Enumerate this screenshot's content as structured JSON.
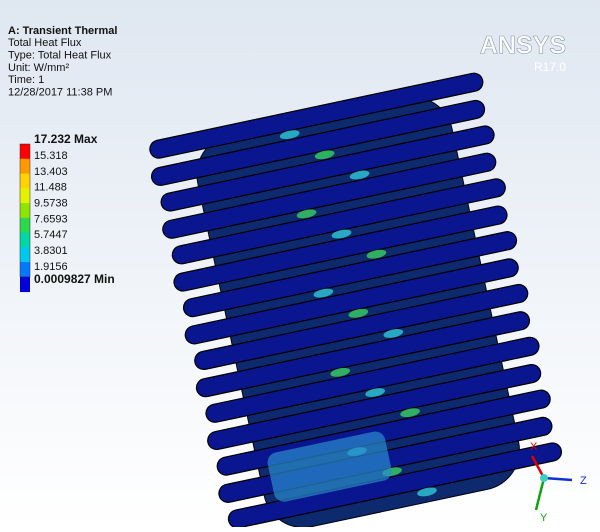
{
  "header": {
    "lines": [
      "A: Transient Thermal",
      "Total Heat Flux",
      "Type: Total Heat Flux",
      "Unit: W/mm²",
      "Time: 1",
      "12/28/2017 11:38 PM"
    ]
  },
  "legend": {
    "max_label": "17.232 Max",
    "levels": [
      "15.318",
      "13.403",
      "11.488",
      "9.5738",
      "7.6593",
      "5.7447",
      "3.8301",
      "1.9156"
    ],
    "min_label": "0.0009827 Min",
    "colors": [
      "#ff0000",
      "#ff9a00",
      "#ffd200",
      "#e4f200",
      "#8ee600",
      "#2dd84c",
      "#00d8a8",
      "#00c8ee",
      "#0078ff",
      "#0000d8"
    ]
  },
  "logo": {
    "name": "ANSYS",
    "version": "R17.0"
  },
  "triad": {
    "x": "X",
    "y": "Y",
    "z": "Z"
  }
}
